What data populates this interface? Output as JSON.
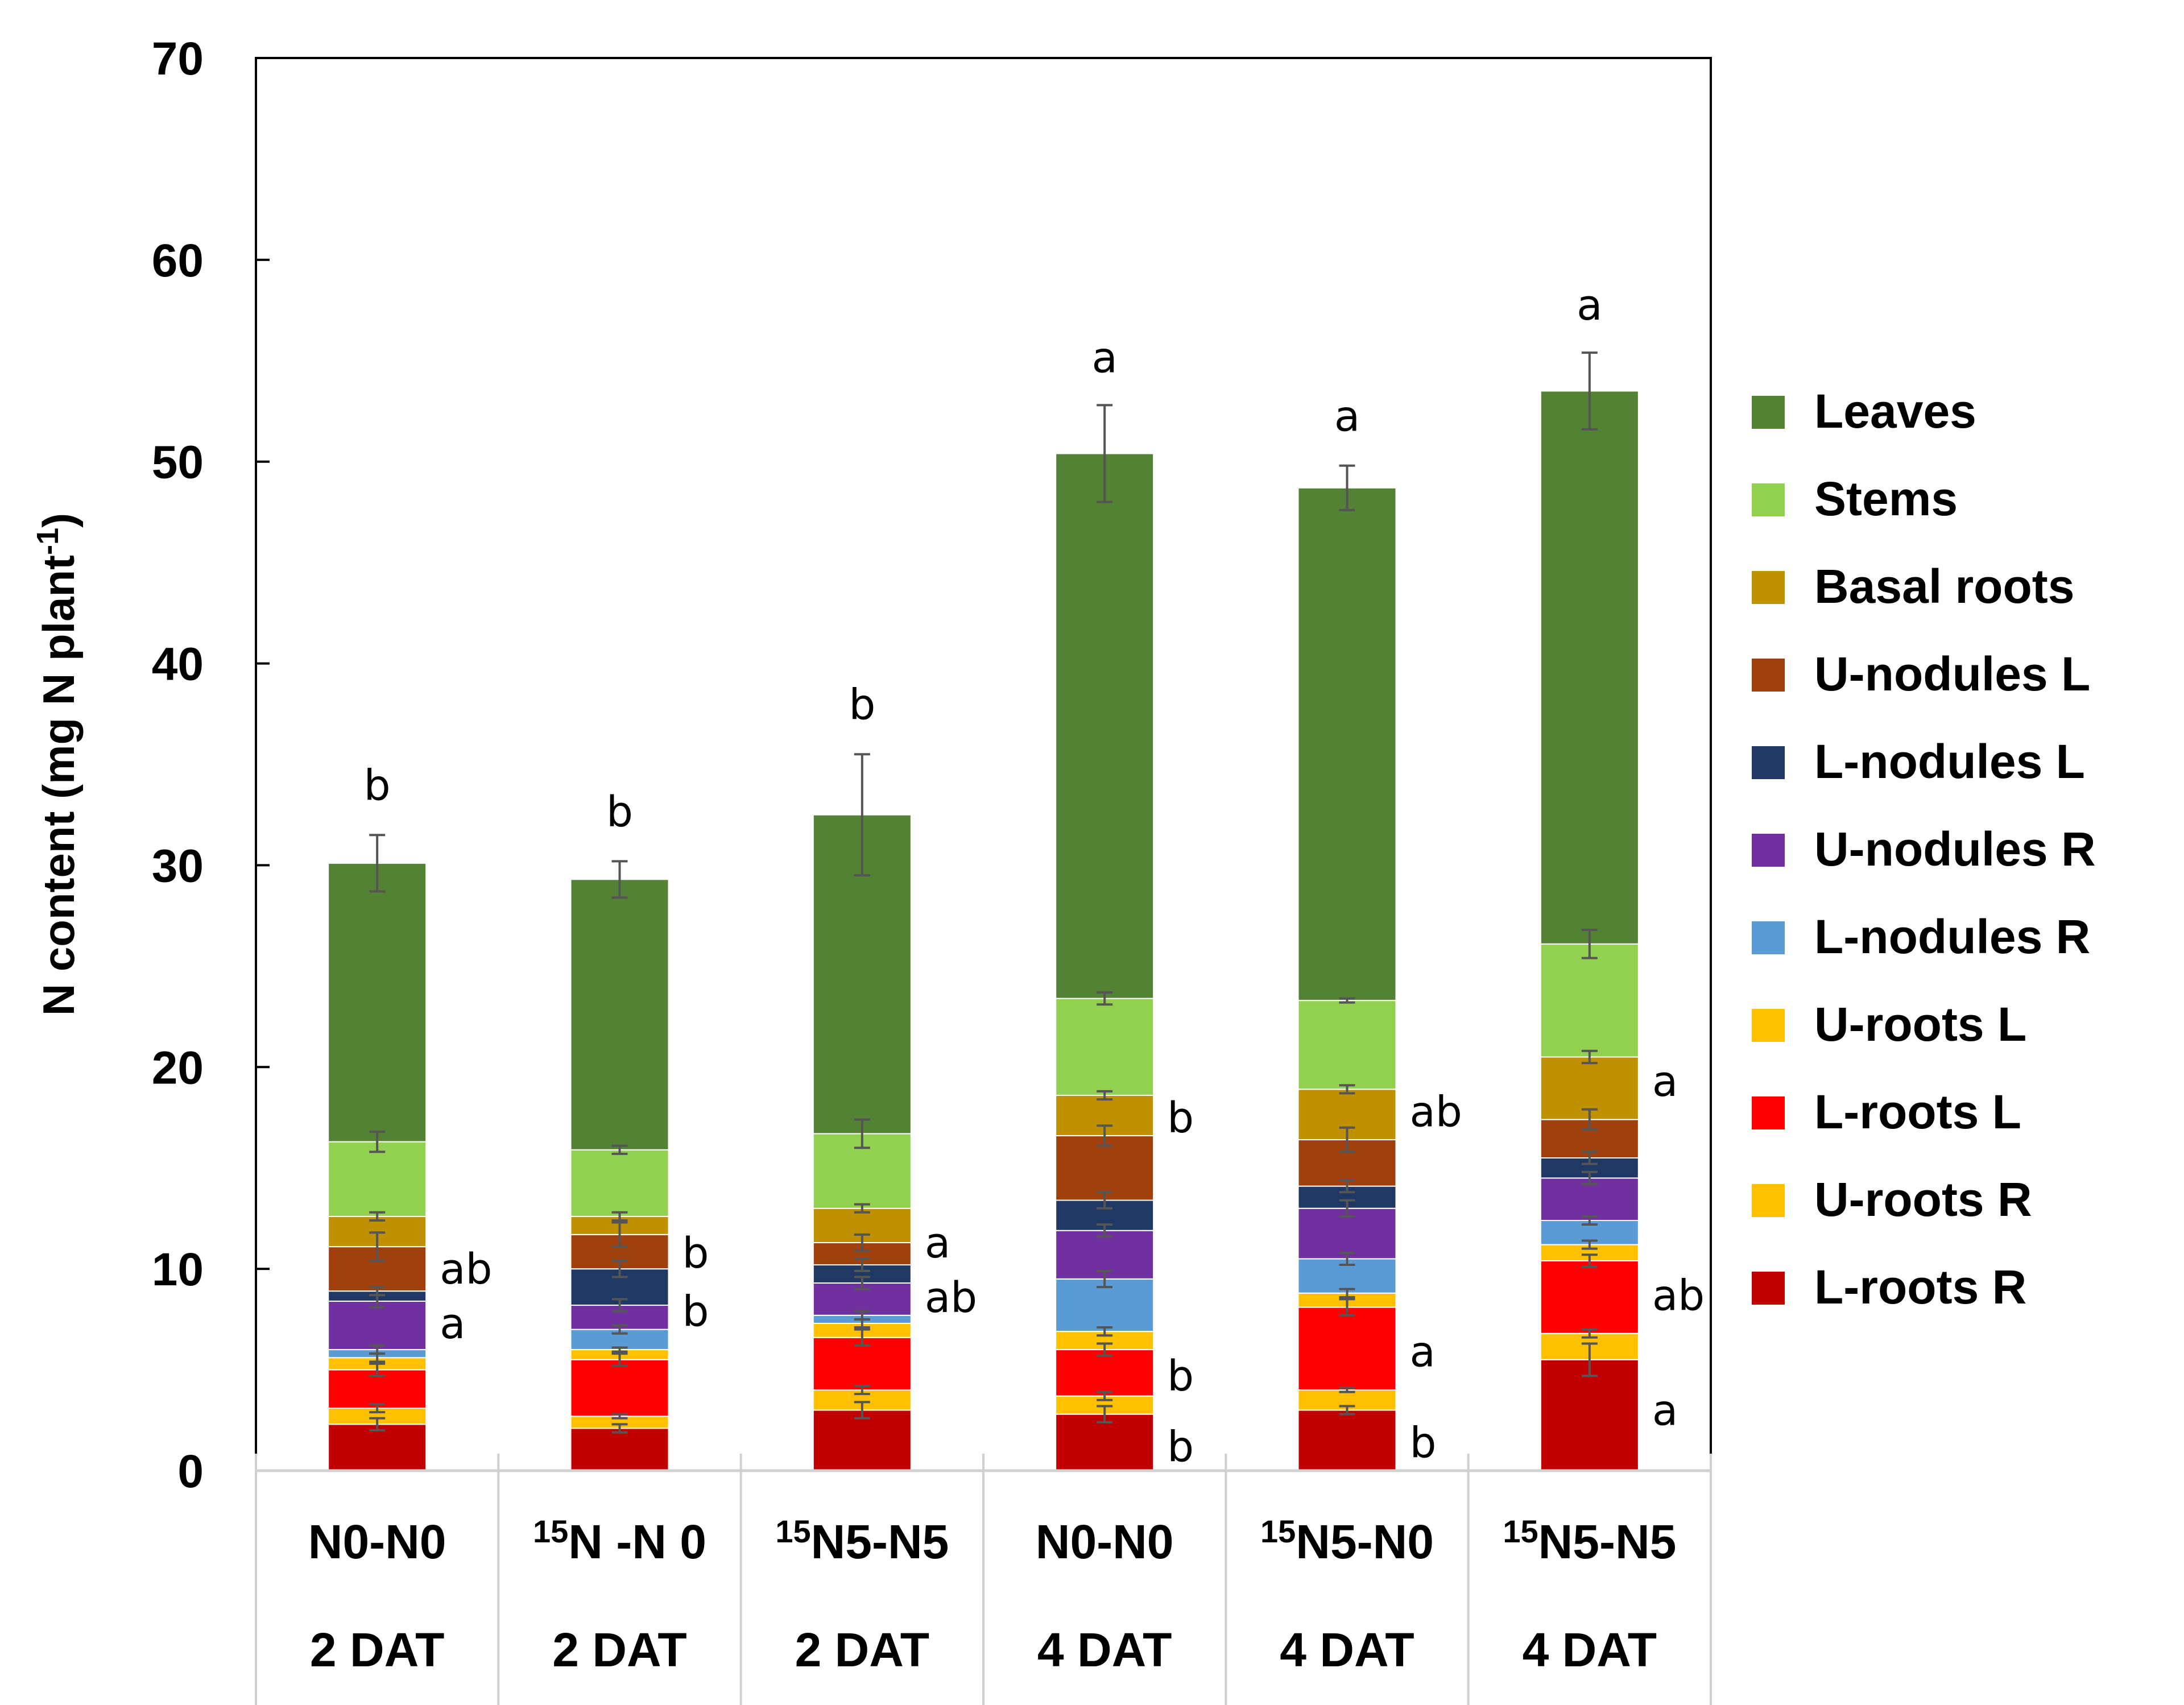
{
  "chart_data": {
    "type": "bar",
    "stacked": true,
    "title": "",
    "xlabel": "",
    "ylabel": "N content (mg N plant",
    "ylabel_superscript": "-1",
    "ylabel_close": ")",
    "ylim": [
      0,
      70
    ],
    "yticks": [
      0,
      10,
      20,
      30,
      40,
      50,
      60,
      70
    ],
    "categories": [
      {
        "sup": "",
        "main": "N0-N0",
        "dat": "2 DAT"
      },
      {
        "sup": "15",
        "main": "N -N 0",
        "dat": "2 DAT"
      },
      {
        "sup": "15",
        "main": "N5-N5",
        "dat": "2 DAT"
      },
      {
        "sup": "",
        "main": "N0-N0",
        "dat": "4 DAT"
      },
      {
        "sup": "15",
        "main": "N5-N0",
        "dat": "4 DAT"
      },
      {
        "sup": "15",
        "main": "N5-N5",
        "dat": "4 DAT"
      }
    ],
    "series": [
      {
        "name": "L-roots R",
        "color": "#C00000",
        "values": [
          2.3,
          2.1,
          3.0,
          2.8,
          3.0,
          5.5
        ],
        "errors": [
          0.3,
          0.2,
          0.4,
          0.4,
          0.2,
          0.8
        ]
      },
      {
        "name": "U-roots R",
        "color": "#FFC000",
        "values": [
          0.8,
          0.6,
          1.0,
          0.9,
          1.0,
          1.3
        ],
        "errors": [
          0.2,
          0.1,
          0.2,
          0.2,
          0.1,
          0.2
        ]
      },
      {
        "name": "L-roots L",
        "color": "#FF0000",
        "values": [
          1.9,
          2.8,
          2.6,
          2.3,
          4.1,
          3.6
        ],
        "errors": [
          0.3,
          0.3,
          0.4,
          0.3,
          0.4,
          0.3
        ]
      },
      {
        "name": "U-roots L",
        "color": "#FFC000",
        "values": [
          0.6,
          0.5,
          0.7,
          0.9,
          0.7,
          0.8
        ],
        "errors": [
          0.2,
          0.1,
          0.2,
          0.2,
          0.2,
          0.2
        ]
      },
      {
        "name": "L-nodules R",
        "color": "#5B9BD5",
        "values": [
          0.4,
          1.0,
          0.4,
          2.6,
          1.7,
          1.2
        ],
        "errors": [
          0.2,
          0.2,
          0.2,
          0.4,
          0.3,
          0.2
        ]
      },
      {
        "name": "U-nodules R",
        "color": "#7030A0",
        "values": [
          2.4,
          1.2,
          1.6,
          2.4,
          2.5,
          2.1
        ],
        "errors": [
          0.3,
          0.3,
          0.3,
          0.3,
          0.4,
          0.3
        ]
      },
      {
        "name": "L-nodules L",
        "color": "#203864",
        "values": [
          0.5,
          1.8,
          0.9,
          1.5,
          1.1,
          1.0
        ],
        "errors": [
          0.2,
          0.4,
          0.3,
          0.4,
          0.3,
          0.3
        ]
      },
      {
        "name": "U-nodules L",
        "color": "#A0410D",
        "values": [
          2.2,
          1.7,
          1.1,
          3.2,
          2.3,
          1.9
        ],
        "errors": [
          0.7,
          0.6,
          0.4,
          0.5,
          0.6,
          0.5
        ]
      },
      {
        "name": "Basal roots",
        "color": "#BF9000",
        "values": [
          1.5,
          0.9,
          1.7,
          2.0,
          2.5,
          3.1
        ],
        "errors": [
          0.2,
          0.2,
          0.2,
          0.2,
          0.2,
          0.3
        ]
      },
      {
        "name": "Stems",
        "color": "#92D050",
        "values": [
          3.7,
          3.3,
          3.7,
          4.8,
          4.4,
          5.6
        ],
        "errors": [
          0.5,
          0.2,
          0.7,
          0.3,
          0.1,
          0.7
        ]
      },
      {
        "name": "Leaves",
        "color": "#548235",
        "values": [
          13.8,
          13.4,
          15.8,
          27.0,
          25.4,
          27.4
        ],
        "errors": [
          1.4,
          0.9,
          3.0,
          2.4,
          1.1,
          1.9
        ]
      }
    ],
    "legend": {
      "placement": "right",
      "order": [
        "Leaves",
        "Stems",
        "Basal roots",
        "U-nodules L",
        "L-nodules L",
        "U-nodules R",
        "L-nodules R",
        "U-roots L",
        "L-roots L",
        "U-roots R",
        "L-roots R"
      ]
    },
    "annotations": [
      {
        "bar": 0,
        "level": 30.2,
        "pos": "top",
        "text": "b"
      },
      {
        "bar": 1,
        "level": 29.4,
        "pos": "top",
        "text": "b"
      },
      {
        "bar": 2,
        "level": 32.6,
        "pos": "top",
        "text": "b"
      },
      {
        "bar": 3,
        "level": 50.4,
        "pos": "top",
        "text": "a"
      },
      {
        "bar": 4,
        "level": 48.8,
        "pos": "top",
        "text": "a"
      },
      {
        "bar": 5,
        "level": 53.5,
        "pos": "top",
        "text": "a"
      },
      {
        "bar": 0,
        "level": 10.0,
        "pos": "right",
        "text": "ab"
      },
      {
        "bar": 0,
        "level": 7.3,
        "pos": "right",
        "text": "a"
      },
      {
        "bar": 1,
        "level": 10.8,
        "pos": "right",
        "text": "b"
      },
      {
        "bar": 1,
        "level": 7.9,
        "pos": "right",
        "text": "b"
      },
      {
        "bar": 2,
        "level": 11.3,
        "pos": "right",
        "text": "a"
      },
      {
        "bar": 2,
        "level": 8.6,
        "pos": "right",
        "text": "ab"
      },
      {
        "bar": 3,
        "level": 17.5,
        "pos": "right",
        "text": "b"
      },
      {
        "bar": 3,
        "level": 4.7,
        "pos": "right",
        "text": "b"
      },
      {
        "bar": 3,
        "level": 1.2,
        "pos": "right",
        "text": "b"
      },
      {
        "bar": 4,
        "level": 17.8,
        "pos": "right",
        "text": "ab"
      },
      {
        "bar": 4,
        "level": 5.9,
        "pos": "right",
        "text": "a"
      },
      {
        "bar": 4,
        "level": 1.4,
        "pos": "right",
        "text": "b"
      },
      {
        "bar": 5,
        "level": 19.3,
        "pos": "right",
        "text": "a"
      },
      {
        "bar": 5,
        "level": 8.7,
        "pos": "right",
        "text": "ab"
      },
      {
        "bar": 5,
        "level": 3.0,
        "pos": "right",
        "text": "a"
      }
    ],
    "grid": false
  }
}
